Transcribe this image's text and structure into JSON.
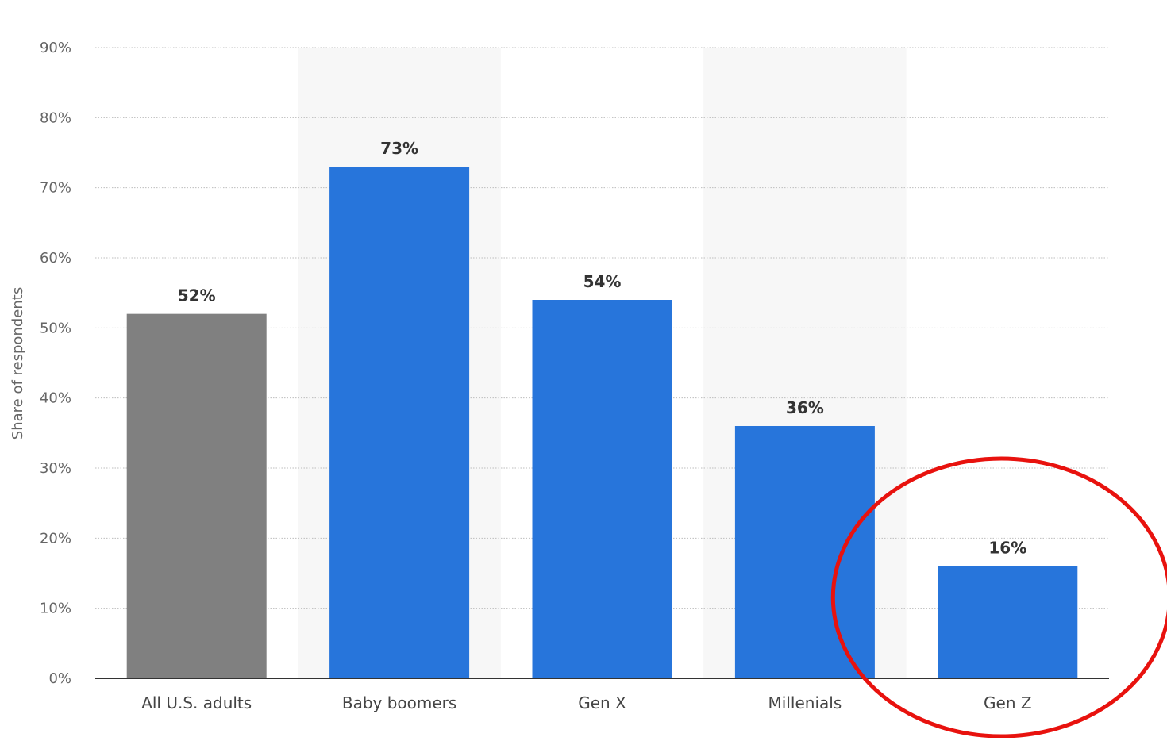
{
  "chart_data": {
    "type": "bar",
    "categories": [
      "All U.S. adults",
      "Baby boomers",
      "Gen X",
      "Millenials",
      "Gen Z"
    ],
    "values": [
      52,
      73,
      54,
      36,
      16
    ],
    "data_labels": [
      "52%",
      "73%",
      "54%",
      "36%",
      "16%"
    ],
    "bar_colors": [
      "#808080",
      "#2775DB",
      "#2775DB",
      "#2775DB",
      "#2775DB"
    ],
    "title": "",
    "xlabel": "",
    "ylabel": "Share of respondents",
    "ylim": [
      0,
      90
    ],
    "yticks": [
      0,
      10,
      20,
      30,
      40,
      50,
      60,
      70,
      80,
      90
    ],
    "ytick_labels": [
      "0%",
      "10%",
      "20%",
      "30%",
      "40%",
      "50%",
      "60%",
      "70%",
      "80%",
      "90%"
    ],
    "grid": true,
    "alternating_band_color": "#F7F7F7",
    "highlight": {
      "category": "Gen Z",
      "shape": "ellipse",
      "color": "#E8120E"
    }
  }
}
